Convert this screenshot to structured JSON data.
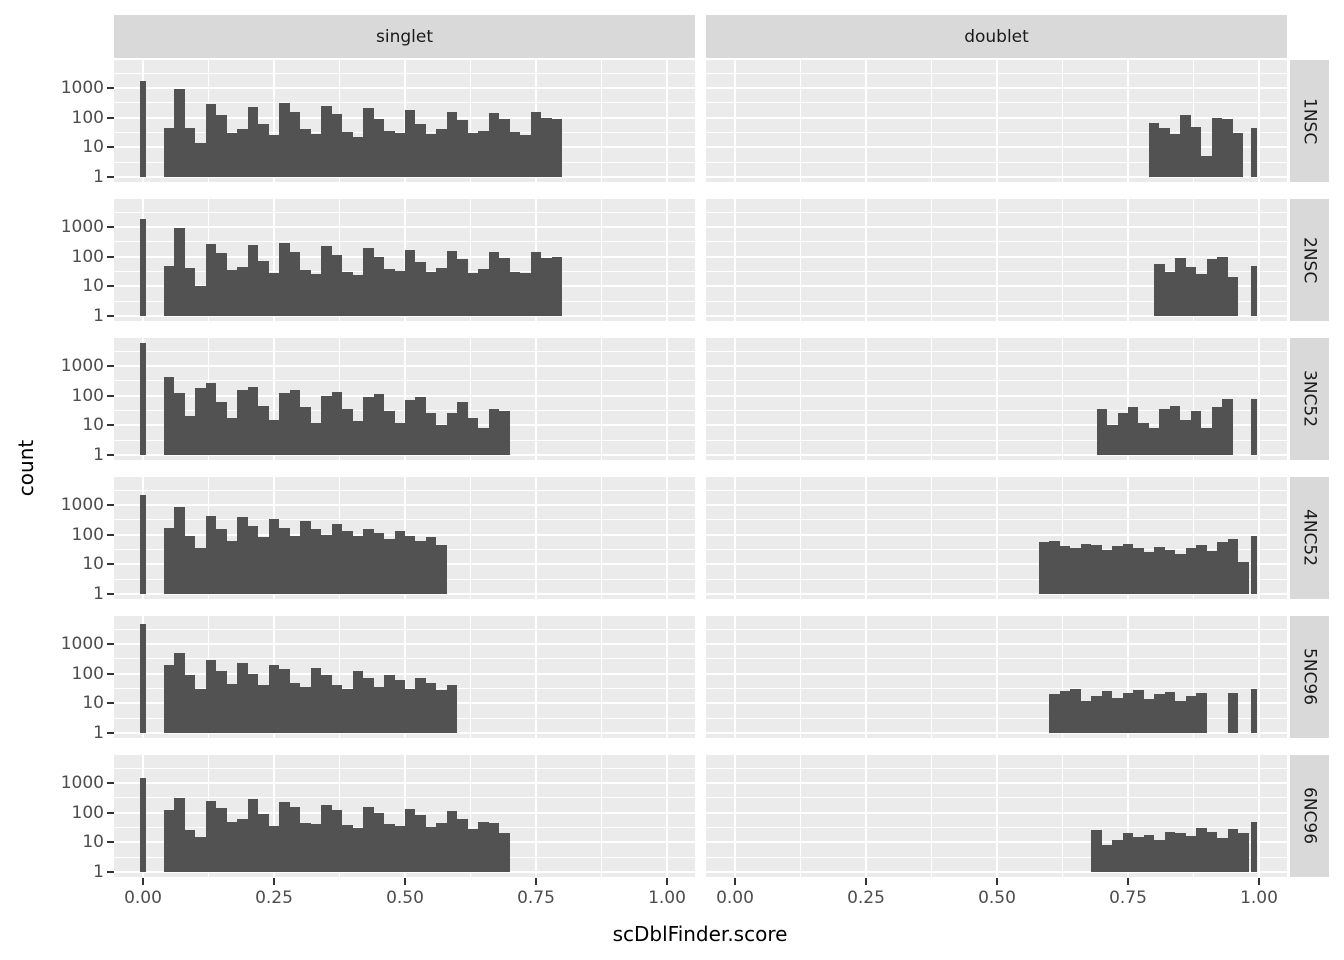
{
  "axes": {
    "x_label": "scDblFinder.score",
    "y_label": "count"
  },
  "colors": {
    "bar": "#525252",
    "panel_bg": "#EBEBEB",
    "strip_bg": "#D9D9D9",
    "grid": "#FFFFFF",
    "tick_text": "#4D4D4D",
    "tick_mark": "#333333",
    "page_bg": "#FFFFFF"
  },
  "chart_data": {
    "type": "bar",
    "subtype": "faceted-log-histogram",
    "title": "",
    "xlabel": "scDblFinder.score",
    "ylabel": "count",
    "y_scale": "log10",
    "xlim": [
      -0.055,
      1.053
    ],
    "ylim_log10": [
      -0.17,
      3.94
    ],
    "grid": "on",
    "bin_width": 0.02,
    "facet_columns": [
      "singlet",
      "doublet"
    ],
    "facet_rows": [
      "1NSC",
      "2NSC",
      "3NC52",
      "4NC52",
      "5NC96",
      "6NC96"
    ],
    "x_ticks": {
      "values": [
        0,
        0.25,
        0.5,
        0.75,
        1.0
      ],
      "labels": [
        "0.00",
        "0.25",
        "0.50",
        "0.75",
        "1.00"
      ]
    },
    "y_ticks": {
      "decades": [
        3,
        2,
        1,
        0
      ],
      "labels": [
        "1000",
        "100",
        "10",
        "1"
      ]
    },
    "panels": [
      {
        "row": "1NSC",
        "col": "singlet",
        "start": 0.04,
        "counts": [
          45,
          900,
          45,
          14,
          280,
          120,
          30,
          40,
          230,
          60,
          25,
          300,
          150,
          40,
          28,
          250,
          130,
          33,
          22,
          210,
          90,
          35,
          30,
          180,
          60,
          28,
          40,
          160,
          80,
          30,
          35,
          140,
          90,
          32,
          26,
          150,
          95,
          90
        ],
        "spikes": [
          [
            0,
            1700
          ]
        ]
      },
      {
        "row": "1NSC",
        "col": "doublet",
        "start": 0.79,
        "counts": [
          65,
          45,
          27,
          120,
          50,
          5,
          100,
          90,
          30
        ],
        "spikes": [
          [
            0.99,
            45
          ]
        ]
      },
      {
        "row": "2NSC",
        "col": "singlet",
        "start": 0.04,
        "counts": [
          50,
          950,
          40,
          10,
          260,
          130,
          35,
          45,
          240,
          70,
          28,
          280,
          140,
          35,
          25,
          220,
          110,
          30,
          24,
          200,
          95,
          38,
          32,
          170,
          65,
          30,
          42,
          150,
          85,
          28,
          38,
          145,
          88,
          30,
          28,
          140,
          90,
          95
        ],
        "spikes": [
          [
            0,
            1850
          ]
        ]
      },
      {
        "row": "2NSC",
        "col": "doublet",
        "start": 0.8,
        "counts": [
          55,
          30,
          90,
          45,
          25,
          80,
          95,
          20
        ],
        "spikes": [
          [
            0.99,
            50
          ]
        ]
      },
      {
        "row": "3NC52",
        "col": "singlet",
        "start": 0.04,
        "counts": [
          420,
          120,
          20,
          180,
          260,
          60,
          18,
          150,
          200,
          45,
          15,
          120,
          160,
          40,
          12,
          100,
          130,
          35,
          14,
          90,
          110,
          30,
          12,
          70,
          90,
          25,
          10,
          25,
          60,
          18,
          8,
          35,
          30
        ],
        "spikes": [
          [
            0,
            6000
          ]
        ]
      },
      {
        "row": "3NC52",
        "col": "doublet",
        "start": 0.69,
        "counts": [
          35,
          10,
          25,
          40,
          12,
          8,
          35,
          45,
          15,
          30,
          8,
          40,
          75
        ],
        "spikes": [
          [
            0.99,
            75
          ]
        ]
      },
      {
        "row": "4NC52",
        "col": "singlet",
        "start": 0.04,
        "counts": [
          170,
          850,
          90,
          35,
          420,
          160,
          60,
          380,
          190,
          80,
          330,
          170,
          90,
          280,
          150,
          100,
          220,
          130,
          90,
          160,
          110,
          70,
          130,
          90,
          60,
          80,
          45
        ],
        "spikes": [
          [
            0,
            2200
          ]
        ]
      },
      {
        "row": "4NC52",
        "col": "doublet",
        "start": 0.58,
        "counts": [
          55,
          60,
          40,
          35,
          50,
          45,
          30,
          40,
          48,
          35,
          25,
          38,
          30,
          22,
          35,
          45,
          28,
          55,
          70,
          12
        ],
        "spikes": [
          [
            0.99,
            90
          ]
        ]
      },
      {
        "row": "5NC96",
        "col": "singlet",
        "start": 0.04,
        "counts": [
          200,
          480,
          90,
          30,
          280,
          120,
          45,
          230,
          100,
          40,
          190,
          140,
          50,
          35,
          160,
          90,
          40,
          30,
          120,
          70,
          35,
          90,
          60,
          30,
          70,
          50,
          28,
          40
        ],
        "spikes": [
          [
            0,
            4500
          ]
        ]
      },
      {
        "row": "5NC96",
        "col": "doublet",
        "start": 0.6,
        "counts": [
          20,
          25,
          30,
          12,
          18,
          25,
          15,
          22,
          28,
          14,
          20,
          24,
          12,
          18,
          22
        ],
        "extra_bars": [
          [
            0.94,
            22
          ]
        ],
        "spikes": [
          [
            0.99,
            30
          ]
        ]
      },
      {
        "row": "6NC96",
        "col": "singlet",
        "start": 0.04,
        "counts": [
          120,
          320,
          25,
          15,
          250,
          140,
          50,
          60,
          280,
          90,
          35,
          220,
          150,
          45,
          40,
          180,
          120,
          38,
          30,
          160,
          100,
          40,
          35,
          130,
          80,
          32,
          45,
          110,
          60,
          28,
          50,
          45,
          20
        ],
        "spikes": [
          [
            0,
            1450
          ]
        ]
      },
      {
        "row": "6NC96",
        "col": "doublet",
        "start": 0.68,
        "counts": [
          25,
          8,
          12,
          20,
          15,
          18,
          12,
          22,
          20,
          16,
          30,
          22,
          14,
          28,
          20
        ],
        "spikes": [
          [
            0.99,
            48
          ]
        ]
      }
    ]
  }
}
